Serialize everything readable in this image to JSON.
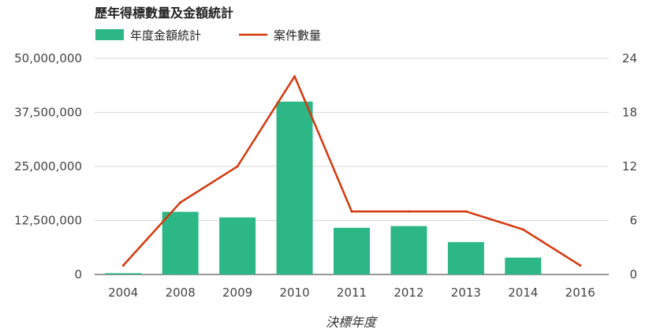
{
  "chart_data": {
    "type": "bar",
    "title": "歷年得標數量及金額統計",
    "xlabel": "決標年度",
    "ylabel": "",
    "y2label": "",
    "categories": [
      "2004",
      "2008",
      "2009",
      "2010",
      "2011",
      "2012",
      "2013",
      "2014",
      "2016"
    ],
    "series": [
      {
        "name": "年度金額統計",
        "type": "bar",
        "axis": "left",
        "color": "#2db786",
        "values": [
          300000,
          14500000,
          13200000,
          40000000,
          10800000,
          11200000,
          7500000,
          3900000,
          0
        ]
      },
      {
        "name": "案件數量",
        "type": "line",
        "axis": "right",
        "color": "#d4380d",
        "values": [
          1,
          8,
          12,
          22,
          7,
          7,
          7,
          5,
          1
        ]
      }
    ],
    "ylim": [
      0,
      50000000
    ],
    "y2lim": [
      0,
      24
    ],
    "yticks": [
      "0",
      "12,500,000",
      "25,000,000",
      "37,500,000",
      "50,000,000"
    ],
    "y2ticks": [
      "0",
      "6",
      "12",
      "18",
      "24"
    ],
    "grid": true,
    "legend_position": "top-left"
  }
}
